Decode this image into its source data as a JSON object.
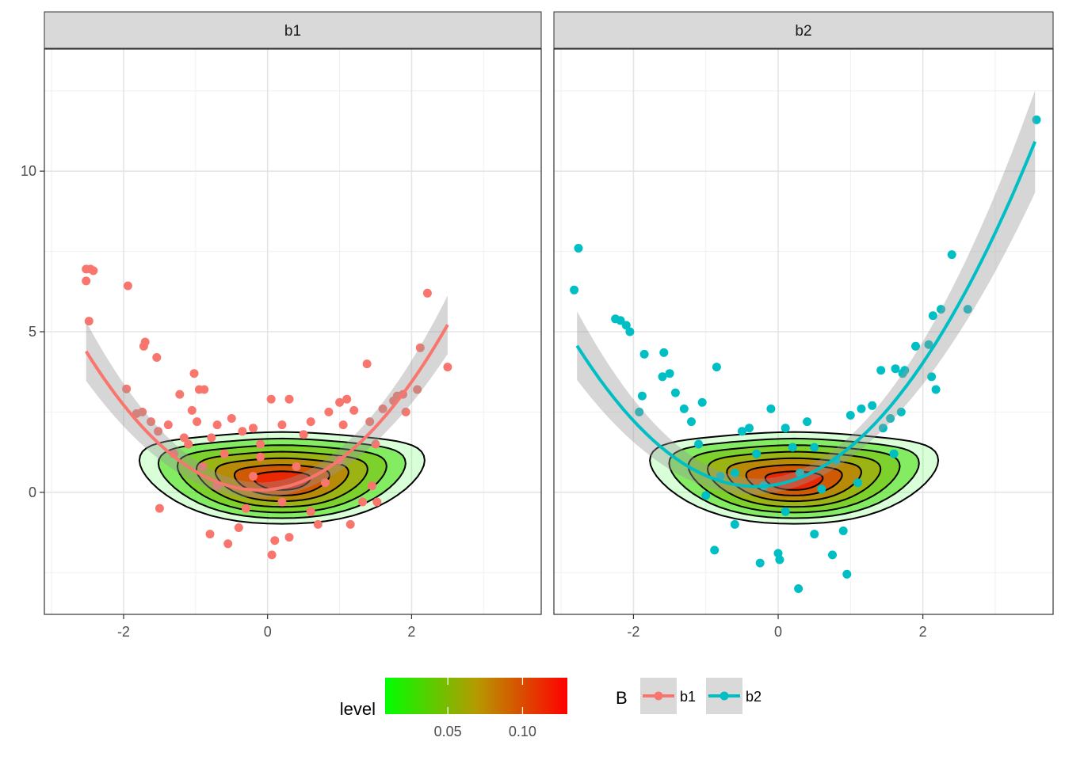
{
  "chart_data": {
    "type": "scatter",
    "panels": [
      {
        "strip_label": "b1",
        "series_name": "b1",
        "color": "#F8766D",
        "fit": {
          "a": 0.75,
          "b": 0.18,
          "c": 0.08,
          "x_range": [
            -2.52,
            2.5
          ]
        },
        "density_center": [
          0.2,
          0.35
        ],
        "points": [
          [
            -2.52,
            6.95
          ],
          [
            -2.46,
            6.95
          ],
          [
            -2.42,
            6.9
          ],
          [
            -2.52,
            6.58
          ],
          [
            -2.48,
            5.33
          ],
          [
            -1.94,
            6.43
          ],
          [
            -1.96,
            3.22
          ],
          [
            -1.7,
            4.68
          ],
          [
            -1.72,
            4.55
          ],
          [
            -1.54,
            4.2
          ],
          [
            -1.82,
            2.45
          ],
          [
            -1.74,
            2.5
          ],
          [
            -1.62,
            2.2
          ],
          [
            -1.52,
            1.9
          ],
          [
            -1.38,
            2.1
          ],
          [
            -1.22,
            3.05
          ],
          [
            -1.16,
            1.7
          ],
          [
            -1.05,
            2.55
          ],
          [
            -1.02,
            3.7
          ],
          [
            -0.95,
            3.2
          ],
          [
            -0.88,
            3.2
          ],
          [
            -1.3,
            1.2
          ],
          [
            -1.1,
            1.5
          ],
          [
            -1.5,
            -0.5
          ],
          [
            -0.98,
            2.2
          ],
          [
            -0.78,
            1.7
          ],
          [
            -0.7,
            2.1
          ],
          [
            -0.6,
            1.2
          ],
          [
            -0.55,
            -1.6
          ],
          [
            -0.8,
            -1.3
          ],
          [
            -0.5,
            2.3
          ],
          [
            -0.35,
            1.9
          ],
          [
            -0.2,
            2.0
          ],
          [
            -0.1,
            1.5
          ],
          [
            -0.3,
            -0.5
          ],
          [
            -0.4,
            -1.1
          ],
          [
            0.05,
            2.9
          ],
          [
            0.3,
            2.9
          ],
          [
            0.2,
            2.1
          ],
          [
            0.06,
            -1.95
          ],
          [
            0.1,
            -1.5
          ],
          [
            0.3,
            -1.4
          ],
          [
            0.5,
            1.8
          ],
          [
            0.6,
            2.2
          ],
          [
            0.7,
            -1.0
          ],
          [
            0.85,
            2.5
          ],
          [
            1.0,
            2.8
          ],
          [
            1.05,
            2.1
          ],
          [
            1.1,
            2.9
          ],
          [
            1.2,
            2.55
          ],
          [
            1.15,
            -1.0
          ],
          [
            1.32,
            -0.3
          ],
          [
            1.38,
            4.0
          ],
          [
            1.42,
            2.2
          ],
          [
            1.5,
            1.5
          ],
          [
            1.45,
            0.2
          ],
          [
            1.52,
            -0.3
          ],
          [
            1.6,
            2.6
          ],
          [
            1.75,
            2.85
          ],
          [
            1.8,
            3.0
          ],
          [
            1.88,
            3.05
          ],
          [
            1.92,
            2.5
          ],
          [
            2.08,
            3.2
          ],
          [
            2.12,
            4.5
          ],
          [
            2.22,
            6.2
          ],
          [
            2.5,
            3.9
          ],
          [
            0.4,
            0.8
          ],
          [
            -0.2,
            0.5
          ],
          [
            0.8,
            0.3
          ],
          [
            0.2,
            -0.3
          ],
          [
            -0.7,
            0.2
          ],
          [
            1.0,
            1.0
          ],
          [
            -0.9,
            0.8
          ],
          [
            0.6,
            -0.6
          ],
          [
            -0.1,
            1.1
          ]
        ]
      },
      {
        "strip_label": "b2",
        "series_name": "b2",
        "color": "#00BFC4",
        "fit": {
          "a": 0.72,
          "b": 0.45,
          "c": 0.25,
          "x_range": [
            -2.78,
            3.55
          ]
        },
        "density_center": [
          0.22,
          0.35
        ],
        "points": [
          [
            -2.76,
            7.6
          ],
          [
            -2.82,
            6.3
          ],
          [
            -2.25,
            5.4
          ],
          [
            -2.18,
            5.35
          ],
          [
            -2.1,
            5.2
          ],
          [
            -2.05,
            5.0
          ],
          [
            -1.85,
            4.3
          ],
          [
            -1.58,
            4.35
          ],
          [
            -1.5,
            3.7
          ],
          [
            -1.92,
            2.5
          ],
          [
            -1.88,
            3.0
          ],
          [
            -1.6,
            3.6
          ],
          [
            -1.42,
            3.1
          ],
          [
            -1.3,
            2.6
          ],
          [
            -1.2,
            2.2
          ],
          [
            -0.85,
            3.9
          ],
          [
            -1.05,
            2.8
          ],
          [
            -1.0,
            -0.1
          ],
          [
            -0.8,
            0.5
          ],
          [
            -0.88,
            -1.8
          ],
          [
            -0.6,
            -1.0
          ],
          [
            -0.5,
            1.9
          ],
          [
            -0.4,
            2.0
          ],
          [
            -0.25,
            -2.2
          ],
          [
            -0.1,
            2.6
          ],
          [
            0.0,
            -1.9
          ],
          [
            0.02,
            -2.1
          ],
          [
            0.28,
            -3.0
          ],
          [
            0.1,
            2.0
          ],
          [
            0.2,
            1.4
          ],
          [
            0.4,
            2.2
          ],
          [
            0.5,
            -1.3
          ],
          [
            0.75,
            -1.95
          ],
          [
            0.9,
            -1.2
          ],
          [
            0.95,
            -2.55
          ],
          [
            1.0,
            2.4
          ],
          [
            1.15,
            2.6
          ],
          [
            1.3,
            2.7
          ],
          [
            1.45,
            2.0
          ],
          [
            1.55,
            2.3
          ],
          [
            1.6,
            1.2
          ],
          [
            1.7,
            2.5
          ],
          [
            1.42,
            3.8
          ],
          [
            1.62,
            3.85
          ],
          [
            1.72,
            3.7
          ],
          [
            1.75,
            3.8
          ],
          [
            1.9,
            4.55
          ],
          [
            2.08,
            4.6
          ],
          [
            2.18,
            3.2
          ],
          [
            2.12,
            3.6
          ],
          [
            2.14,
            5.5
          ],
          [
            2.25,
            5.7
          ],
          [
            2.4,
            7.4
          ],
          [
            2.62,
            5.7
          ],
          [
            3.57,
            11.6
          ],
          [
            0.3,
            0.6
          ],
          [
            -0.3,
            1.2
          ],
          [
            0.6,
            0.1
          ],
          [
            -0.6,
            0.6
          ],
          [
            0.8,
            1.0
          ],
          [
            -1.1,
            1.5
          ],
          [
            0.1,
            -0.6
          ],
          [
            -0.2,
            0.2
          ],
          [
            0.5,
            1.4
          ],
          [
            1.1,
            0.3
          ]
        ]
      }
    ],
    "xlim": [
      -3.1,
      3.8
    ],
    "ylim": [
      -3.8,
      13.8
    ],
    "x_ticks": [
      -2,
      0,
      2
    ],
    "x_tick_labels": [
      "-2",
      "0",
      "2"
    ],
    "y_ticks": [
      0,
      5,
      10
    ],
    "y_tick_labels": [
      "0",
      "5",
      "10"
    ],
    "xlabel": "",
    "ylabel": "",
    "grid": true,
    "legend_position": "bottom",
    "legend_level": {
      "title": "level",
      "range": [
        0.008,
        0.13
      ],
      "ticks": [
        0.05,
        0.1
      ],
      "tick_labels": [
        "0.05",
        "0.10"
      ],
      "colors": [
        "#00FF00",
        "#FF0000"
      ]
    },
    "legend_B": {
      "title": "B",
      "entries": [
        {
          "label": "b1",
          "color": "#F8766D"
        },
        {
          "label": "b2",
          "color": "#00BFC4"
        }
      ]
    }
  }
}
